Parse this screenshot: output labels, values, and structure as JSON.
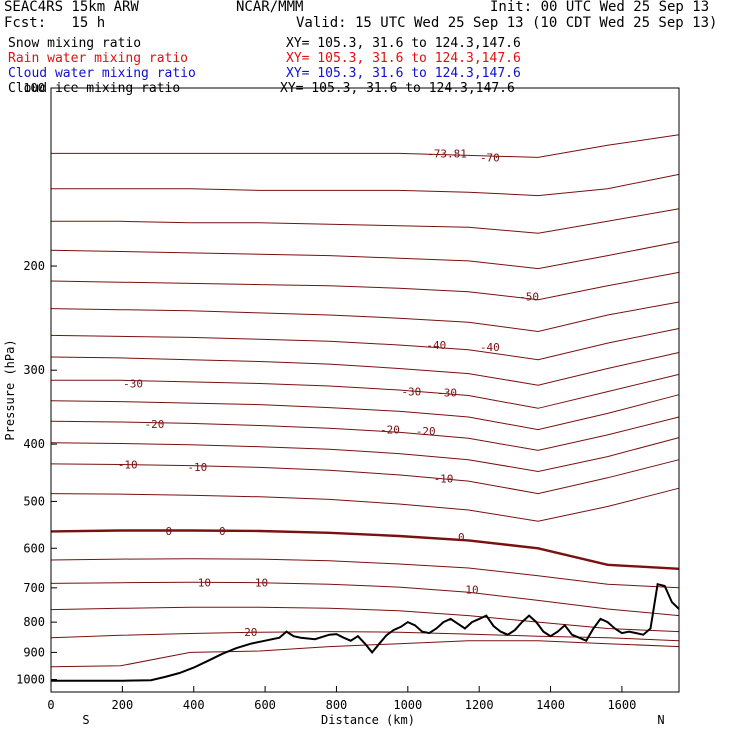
{
  "header": {
    "model": "SEAC4RS 15km ARW",
    "org": "NCAR/MMM",
    "init": "Init: 00 UTC Wed 25 Sep 13",
    "fcst": "Fcst:   15 h",
    "valid": "Valid: 15 UTC Wed 25 Sep 13 (10 CDT Wed 25 Sep 13)"
  },
  "legend": [
    {
      "label": "Snow mixing ratio",
      "xy": "XY= 105.3, 31.6 to 124.3,147.6",
      "color": "#000000"
    },
    {
      "label": "Rain water mixing ratio",
      "xy": "XY= 105.3, 31.6 to 124.3,147.6",
      "color": "#e01010"
    },
    {
      "label": "Cloud water mixing ratio",
      "xy": "XY= 105.3, 31.6 to 124.3,147.6",
      "color": "#1010d0"
    },
    {
      "label": "Cloud ice mixing ratio",
      "xy": "XY= 105.3, 31.6 to 124.3,147.6",
      "color": "#000000"
    }
  ],
  "chart_data": {
    "type": "line",
    "xlabel": "Distance (km)",
    "ylabel": "Pressure (hPa)",
    "xlim": [
      0,
      1760
    ],
    "ylim": [
      1050,
      100
    ],
    "y_scale": "log",
    "x_ticks": [
      0,
      200,
      400,
      600,
      800,
      1000,
      1200,
      1400,
      1600
    ],
    "y_ticks": [
      100,
      200,
      300,
      400,
      500,
      600,
      700,
      800,
      900,
      1000
    ],
    "x_end_labels": [
      "S",
      "N"
    ],
    "contour_field": "Temperature (C)",
    "contour_interval": 5,
    "contour_color": "#7a1010",
    "contour_levels": [
      {
        "t": -70,
        "p": [
          129,
          129,
          129,
          129,
          129,
          129,
          130,
          131,
          125,
          120
        ]
      },
      {
        "t": -65,
        "p": [
          148,
          148,
          148,
          149,
          149,
          149,
          150,
          152,
          148,
          140
        ]
      },
      {
        "t": -60,
        "p": [
          168,
          168,
          169,
          169,
          170,
          171,
          172,
          176,
          168,
          160
        ]
      },
      {
        "t": -55,
        "p": [
          188,
          189,
          190,
          191,
          192,
          194,
          196,
          202,
          192,
          182
        ]
      },
      {
        "t": -50,
        "p": [
          212,
          213,
          214,
          215,
          216,
          218,
          221,
          228,
          216,
          205
        ]
      },
      {
        "t": -45,
        "p": [
          236,
          237,
          238,
          240,
          242,
          245,
          249,
          258,
          242,
          230
        ]
      },
      {
        "t": -40,
        "p": [
          262,
          263,
          264,
          266,
          268,
          272,
          277,
          288,
          270,
          255
        ]
      },
      {
        "t": -35,
        "p": [
          285,
          286,
          288,
          290,
          293,
          298,
          304,
          318,
          298,
          280
        ]
      },
      {
        "t": -30,
        "p": [
          312,
          312,
          314,
          316,
          319,
          324,
          331,
          348,
          326,
          305
        ]
      },
      {
        "t": -25,
        "p": [
          338,
          339,
          341,
          343,
          347,
          352,
          360,
          378,
          355,
          330
        ]
      },
      {
        "t": -20,
        "p": [
          366,
          367,
          369,
          372,
          376,
          382,
          391,
          410,
          386,
          360
        ]
      },
      {
        "t": -15,
        "p": [
          398,
          399,
          401,
          404,
          408,
          415,
          425,
          445,
          420,
          390
        ]
      },
      {
        "t": -10,
        "p": [
          432,
          433,
          435,
          438,
          443,
          451,
          462,
          485,
          456,
          425
        ]
      },
      {
        "t": -5,
        "p": [
          485,
          486,
          488,
          491,
          496,
          505,
          517,
          540,
          510,
          475
        ]
      },
      {
        "t": 0,
        "p": [
          562,
          560,
          560,
          561,
          565,
          572,
          582,
          600,
          640,
          650
        ]
      },
      {
        "t": 5,
        "p": [
          628,
          626,
          625,
          626,
          630,
          638,
          648,
          668,
          690,
          700
        ]
      },
      {
        "t": 10,
        "p": [
          688,
          686,
          685,
          686,
          690,
          698,
          712,
          735,
          760,
          780
        ]
      },
      {
        "t": 15,
        "p": [
          762,
          758,
          755,
          755,
          758,
          765,
          780,
          800,
          820,
          830
        ]
      },
      {
        "t": 20,
        "p": [
          850,
          842,
          836,
          832,
          830,
          832,
          838,
          845,
          850,
          860
        ]
      },
      {
        "t": 25,
        "p": [
          952,
          948,
          900,
          895,
          880,
          870,
          860,
          860,
          870,
          880
        ]
      }
    ],
    "contour_x": [
      0,
      195,
      390,
      585,
      780,
      975,
      1170,
      1365,
      1560,
      1760
    ],
    "contour_labels": [
      {
        "text": "-73.81",
        "x": 1110,
        "p": 129
      },
      {
        "text": "-70",
        "x": 1230,
        "p": 131
      },
      {
        "text": "-50",
        "x": 1340,
        "p": 225
      },
      {
        "text": "-40",
        "x": 1080,
        "p": 272
      },
      {
        "text": "-40",
        "x": 1230,
        "p": 274
      },
      {
        "text": "-30",
        "x": 230,
        "p": 316
      },
      {
        "text": "-30",
        "x": 1010,
        "p": 326
      },
      {
        "text": "-30",
        "x": 1110,
        "p": 327
      },
      {
        "text": "-20",
        "x": 290,
        "p": 370
      },
      {
        "text": "-20",
        "x": 950,
        "p": 378
      },
      {
        "text": "-20",
        "x": 1050,
        "p": 380
      },
      {
        "text": "-10",
        "x": 215,
        "p": 433
      },
      {
        "text": "-10",
        "x": 410,
        "p": 437
      },
      {
        "text": "-10",
        "x": 1100,
        "p": 457
      },
      {
        "text": "0",
        "x": 330,
        "p": 561
      },
      {
        "text": "0",
        "x": 480,
        "p": 561
      },
      {
        "text": "0",
        "x": 1150,
        "p": 574
      },
      {
        "text": "10",
        "x": 430,
        "p": 685
      },
      {
        "text": "10",
        "x": 590,
        "p": 686
      },
      {
        "text": "10",
        "x": 1180,
        "p": 705
      },
      {
        "text": "20",
        "x": 560,
        "p": 832
      }
    ],
    "terrain": {
      "x": [
        0,
        100,
        200,
        280,
        320,
        360,
        400,
        440,
        480,
        520,
        560,
        600,
        640,
        660,
        680,
        700,
        740,
        780,
        800,
        820,
        840,
        860,
        880,
        900,
        920,
        940,
        960,
        980,
        1000,
        1020,
        1040,
        1060,
        1080,
        1100,
        1120,
        1140,
        1160,
        1180,
        1200,
        1220,
        1240,
        1260,
        1280,
        1300,
        1320,
        1340,
        1360,
        1380,
        1400,
        1420,
        1440,
        1460,
        1480,
        1500,
        1520,
        1540,
        1560,
        1580,
        1600,
        1620,
        1640,
        1660,
        1680,
        1700,
        1720,
        1740,
        1760
      ],
      "p": [
        1005,
        1005,
        1005,
        1003,
        990,
        975,
        955,
        930,
        905,
        885,
        870,
        860,
        850,
        830,
        845,
        850,
        855,
        840,
        838,
        850,
        860,
        845,
        870,
        900,
        870,
        842,
        825,
        815,
        800,
        810,
        830,
        835,
        820,
        800,
        790,
        805,
        820,
        800,
        790,
        780,
        812,
        830,
        840,
        825,
        800,
        780,
        800,
        830,
        845,
        830,
        810,
        840,
        850,
        860,
        820,
        790,
        800,
        820,
        835,
        830,
        835,
        840,
        820,
        690,
        695,
        740,
        760
      ]
    }
  }
}
